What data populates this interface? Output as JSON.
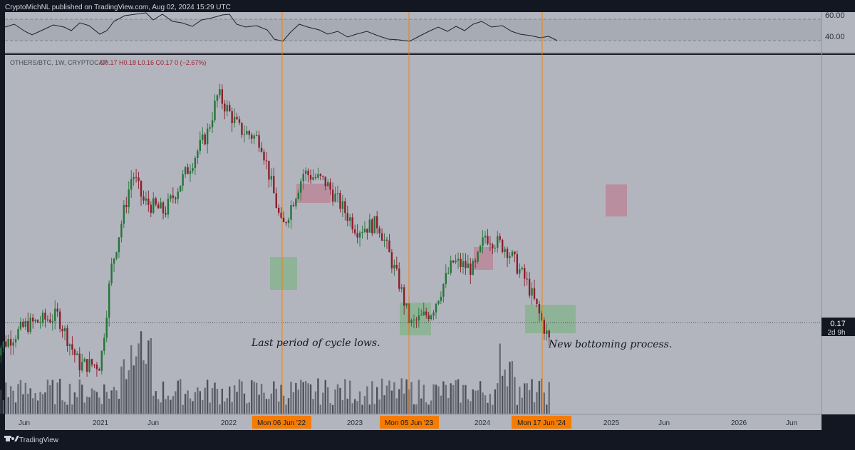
{
  "header": {
    "publish_line": "CryptoMichNL published on TradingView.com, Aug 02, 2024 15:29 UTC"
  },
  "symbol_line": {
    "symbol": "OTHERS/BTC, 1W, CRYPTOCAP",
    "ohlc": "O0.17  H0.18  L0.16  C0.17  0 (−2.67%)"
  },
  "price_badge": {
    "price": "0.17",
    "countdown": "2d 9h"
  },
  "rsi_panel": {
    "ticks": [
      "60.00",
      "40.00"
    ]
  },
  "annotations": {
    "cycle_lows": "Last period of cycle lows.",
    "bottoming": "New bottoming process."
  },
  "x_axis_labels": [
    "Jun",
    "2021",
    "Jun",
    "2022",
    "2023",
    "2024",
    "2025",
    "Jun",
    "2026",
    "Jun"
  ],
  "date_markers": [
    "Mon 06 Jun '22",
    "Mon 05 Jun '23",
    "Mon 17 Jun '24"
  ],
  "footer": {
    "brand": "TradingView"
  },
  "colors": {
    "background": "#b2b5be",
    "frame": "#131722",
    "up_candle": "#26743a",
    "down_candle": "#8b1e2b",
    "volume": "#5d606b",
    "marker": "#f57c00",
    "green_zone": "#4caf50",
    "red_zone": "#c0607a"
  },
  "chart_data": {
    "type": "candlestick",
    "symbol": "OTHERS/BTC",
    "interval": "1W",
    "last_close": 0.17,
    "weekly_close_path": [
      {
        "x": "2020-03",
        "y": 0.16
      },
      {
        "x": "2020-06",
        "y": 0.185
      },
      {
        "x": "2020-09",
        "y": 0.195
      },
      {
        "x": "2020-11",
        "y": 0.15
      },
      {
        "x": "2021-01",
        "y": 0.15
      },
      {
        "x": "2021-02",
        "y": 0.25
      },
      {
        "x": "2021-04",
        "y": 0.42
      },
      {
        "x": "2021-05",
        "y": 0.36
      },
      {
        "x": "2021-07",
        "y": 0.34
      },
      {
        "x": "2021-09",
        "y": 0.42
      },
      {
        "x": "2021-11",
        "y": 0.52
      },
      {
        "x": "2021-12",
        "y": 0.64
      },
      {
        "x": "2022-02",
        "y": 0.53
      },
      {
        "x": "2022-04",
        "y": 0.5
      },
      {
        "x": "2022-06",
        "y": 0.31
      },
      {
        "x": "2022-08",
        "y": 0.42
      },
      {
        "x": "2022-10",
        "y": 0.4
      },
      {
        "x": "2023-01",
        "y": 0.31
      },
      {
        "x": "2023-03",
        "y": 0.32
      },
      {
        "x": "2023-05",
        "y": 0.23
      },
      {
        "x": "2023-06",
        "y": 0.185
      },
      {
        "x": "2023-08",
        "y": 0.2
      },
      {
        "x": "2023-10",
        "y": 0.26
      },
      {
        "x": "2023-12",
        "y": 0.25
      },
      {
        "x": "2024-01",
        "y": 0.3
      },
      {
        "x": "2024-03",
        "y": 0.28
      },
      {
        "x": "2024-05",
        "y": 0.23
      },
      {
        "x": "2024-07",
        "y": 0.17
      }
    ],
    "vertical_markers": [
      "2022-06-06",
      "2023-06-05",
      "2024-06-17"
    ],
    "green_zones": [
      {
        "x0": "2022-05",
        "x1": "2022-07"
      },
      {
        "x0": "2023-05",
        "x1": "2023-07"
      },
      {
        "x0": "2024-05",
        "x1": "2024-08"
      }
    ],
    "red_zones": [
      {
        "x0": "2022-07",
        "x1": "2022-09"
      },
      {
        "x0": "2023-12",
        "x1": "2024-01"
      },
      {
        "x0": "2025-02",
        "x1": "2025-03"
      }
    ],
    "rsi_levels": [
      60,
      40
    ],
    "x_range": [
      "2020-05",
      "2026-07"
    ]
  }
}
